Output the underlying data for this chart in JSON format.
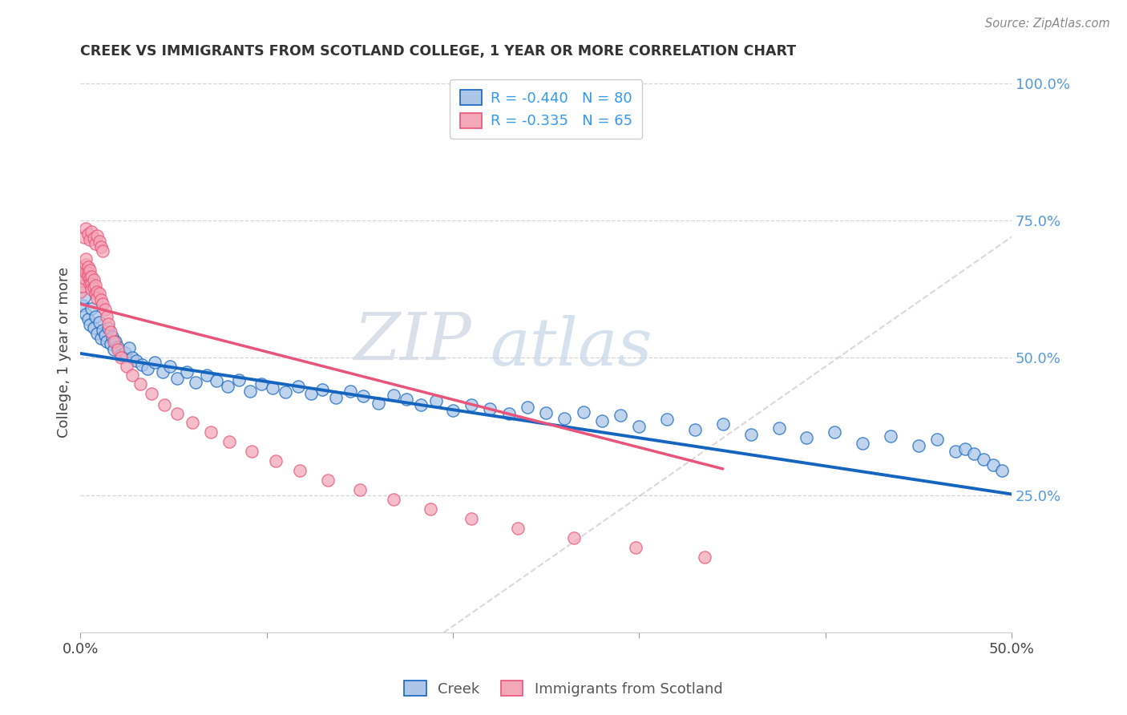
{
  "title": "CREEK VS IMMIGRANTS FROM SCOTLAND COLLEGE, 1 YEAR OR MORE CORRELATION CHART",
  "source": "Source: ZipAtlas.com",
  "ylabel_left": "College, 1 year or more",
  "x_min": 0.0,
  "x_max": 0.5,
  "y_min": 0.0,
  "y_max": 1.02,
  "y_ticks_right": [
    0.25,
    0.5,
    0.75,
    1.0
  ],
  "y_tick_labels_right": [
    "25.0%",
    "50.0%",
    "75.0%",
    "100.0%"
  ],
  "legend_creek": "Creek",
  "legend_scotland": "Immigrants from Scotland",
  "creek_R": -0.44,
  "creek_N": 80,
  "scotland_R": -0.335,
  "scotland_N": 65,
  "creek_color": "#adc6e8",
  "creek_line_color": "#1565c0",
  "scotland_color": "#f4a7b9",
  "scotland_line_color": "#e8547a",
  "watermark_zip": "ZIP",
  "watermark_atlas": "atlas",
  "creek_line_x0": 0.0,
  "creek_line_y0": 0.508,
  "creek_line_x1": 0.5,
  "creek_line_y1": 0.252,
  "scotland_line_x0": 0.0,
  "scotland_line_y0": 0.598,
  "scotland_line_x1": 0.345,
  "scotland_line_y1": 0.298,
  "dash_line_x0": 0.195,
  "dash_line_y0": 0.0,
  "dash_line_x1": 0.5,
  "dash_line_y1": 0.0,
  "creek_x": [
    0.001,
    0.002,
    0.003,
    0.004,
    0.005,
    0.006,
    0.007,
    0.008,
    0.009,
    0.01,
    0.011,
    0.012,
    0.013,
    0.014,
    0.015,
    0.016,
    0.017,
    0.018,
    0.019,
    0.02,
    0.022,
    0.024,
    0.026,
    0.028,
    0.03,
    0.033,
    0.036,
    0.04,
    0.044,
    0.048,
    0.052,
    0.057,
    0.062,
    0.068,
    0.073,
    0.079,
    0.085,
    0.091,
    0.097,
    0.103,
    0.11,
    0.117,
    0.124,
    0.13,
    0.137,
    0.145,
    0.152,
    0.16,
    0.168,
    0.175,
    0.183,
    0.191,
    0.2,
    0.21,
    0.22,
    0.23,
    0.24,
    0.25,
    0.26,
    0.27,
    0.28,
    0.29,
    0.3,
    0.315,
    0.33,
    0.345,
    0.36,
    0.375,
    0.39,
    0.405,
    0.42,
    0.435,
    0.45,
    0.46,
    0.47,
    0.475,
    0.48,
    0.485,
    0.49,
    0.495
  ],
  "creek_y": [
    0.595,
    0.61,
    0.58,
    0.57,
    0.56,
    0.59,
    0.555,
    0.575,
    0.545,
    0.565,
    0.535,
    0.55,
    0.542,
    0.53,
    0.555,
    0.525,
    0.538,
    0.515,
    0.53,
    0.52,
    0.505,
    0.51,
    0.518,
    0.5,
    0.495,
    0.488,
    0.48,
    0.492,
    0.475,
    0.485,
    0.462,
    0.475,
    0.455,
    0.468,
    0.458,
    0.448,
    0.46,
    0.44,
    0.453,
    0.445,
    0.438,
    0.448,
    0.435,
    0.442,
    0.428,
    0.44,
    0.43,
    0.418,
    0.432,
    0.425,
    0.415,
    0.422,
    0.405,
    0.415,
    0.408,
    0.398,
    0.41,
    0.4,
    0.39,
    0.402,
    0.385,
    0.395,
    0.375,
    0.388,
    0.37,
    0.38,
    0.36,
    0.372,
    0.355,
    0.365,
    0.345,
    0.358,
    0.34,
    0.352,
    0.33,
    0.335,
    0.325,
    0.315,
    0.305,
    0.295
  ],
  "scotland_x": [
    0.0,
    0.001,
    0.001,
    0.002,
    0.002,
    0.003,
    0.003,
    0.003,
    0.004,
    0.004,
    0.004,
    0.005,
    0.005,
    0.005,
    0.006,
    0.006,
    0.006,
    0.007,
    0.007,
    0.008,
    0.008,
    0.009,
    0.009,
    0.01,
    0.011,
    0.012,
    0.013,
    0.014,
    0.015,
    0.016,
    0.018,
    0.02,
    0.022,
    0.025,
    0.028,
    0.032,
    0.038,
    0.045,
    0.052,
    0.06,
    0.07,
    0.08,
    0.092,
    0.105,
    0.118,
    0.133,
    0.15,
    0.168,
    0.188,
    0.21,
    0.235,
    0.265,
    0.298,
    0.335,
    0.002,
    0.003,
    0.004,
    0.005,
    0.006,
    0.007,
    0.008,
    0.009,
    0.01,
    0.011,
    0.012
  ],
  "scotland_y": [
    0.62,
    0.64,
    0.63,
    0.66,
    0.645,
    0.67,
    0.655,
    0.68,
    0.665,
    0.655,
    0.648,
    0.66,
    0.645,
    0.635,
    0.648,
    0.635,
    0.625,
    0.642,
    0.628,
    0.618,
    0.632,
    0.62,
    0.608,
    0.618,
    0.605,
    0.598,
    0.588,
    0.575,
    0.562,
    0.548,
    0.53,
    0.515,
    0.5,
    0.485,
    0.468,
    0.452,
    0.435,
    0.415,
    0.398,
    0.382,
    0.365,
    0.348,
    0.33,
    0.312,
    0.295,
    0.278,
    0.26,
    0.242,
    0.225,
    0.208,
    0.19,
    0.172,
    0.155,
    0.138,
    0.72,
    0.735,
    0.725,
    0.715,
    0.73,
    0.718,
    0.708,
    0.722,
    0.712,
    0.702,
    0.695
  ]
}
